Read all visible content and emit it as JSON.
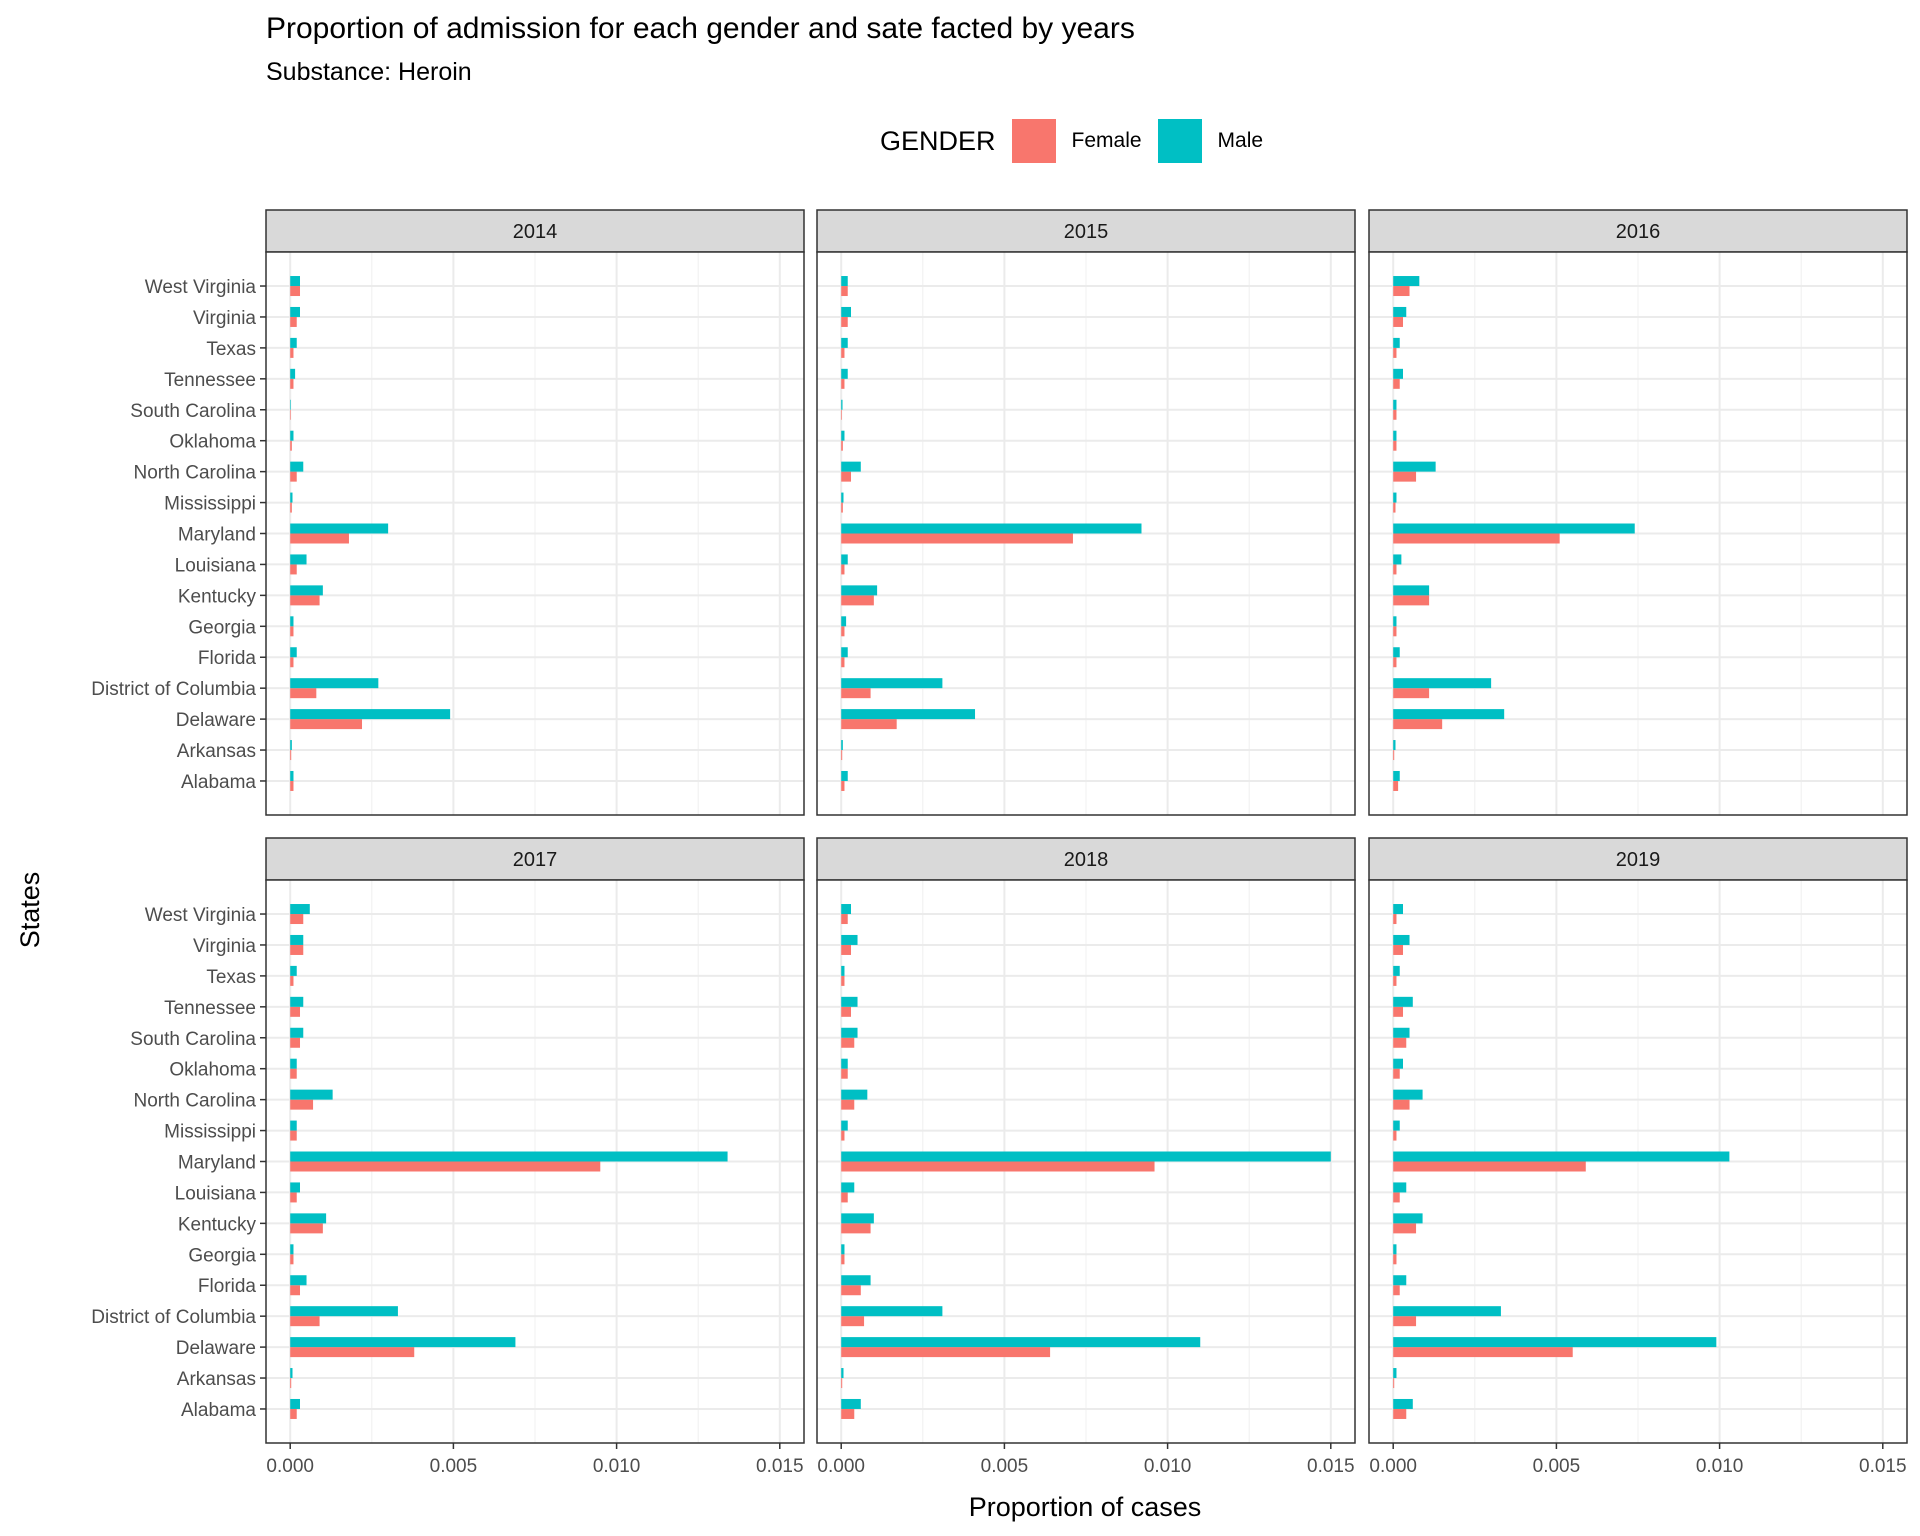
{
  "title": "Proportion of admission for each gender and sate facted by years",
  "subtitle": "Substance: Heroin",
  "legend": {
    "title": "GENDER",
    "items": [
      {
        "label": "Female",
        "color": "#F8766D"
      },
      {
        "label": "Male",
        "color": "#00BFC4"
      }
    ]
  },
  "chart_data": {
    "type": "bar",
    "orientation": "horizontal",
    "title": "Proportion of admission for each gender and sate facted by years",
    "subtitle": "Substance: Heroin",
    "xlabel": "Proportion of cases",
    "ylabel": "States",
    "xlim": [
      0,
      0.015
    ],
    "x_ticks": [
      "0.000",
      "0.005",
      "0.010",
      "0.015"
    ],
    "grid": true,
    "legend_position": "top",
    "categories": [
      "Alabama",
      "Arkansas",
      "Delaware",
      "District of Columbia",
      "Florida",
      "Georgia",
      "Kentucky",
      "Louisiana",
      "Maryland",
      "Mississippi",
      "North Carolina",
      "Oklahoma",
      "South Carolina",
      "Tennessee",
      "Texas",
      "Virginia",
      "West Virginia"
    ],
    "facets": [
      {
        "label": "2014",
        "series": [
          {
            "name": "Female",
            "values": [
              0.0001,
              3e-05,
              0.0022,
              0.0008,
              0.0001,
              0.0001,
              0.0009,
              0.0002,
              0.0018,
              5e-05,
              0.0002,
              5e-05,
              0.0,
              0.0001,
              0.0001,
              0.0002,
              0.0003
            ]
          },
          {
            "name": "Male",
            "values": [
              0.0001,
              5e-05,
              0.0049,
              0.0027,
              0.0002,
              0.0001,
              0.001,
              0.0005,
              0.003,
              7e-05,
              0.0004,
              0.0001,
              1e-05,
              0.00015,
              0.0002,
              0.0003,
              0.0003
            ]
          }
        ]
      },
      {
        "label": "2015",
        "series": [
          {
            "name": "Female",
            "values": [
              0.0001,
              3e-05,
              0.0017,
              0.0009,
              0.0001,
              0.0001,
              0.001,
              0.0001,
              0.0071,
              5e-05,
              0.0003,
              5e-05,
              2e-05,
              0.0001,
              0.0001,
              0.0002,
              0.0002
            ]
          },
          {
            "name": "Male",
            "values": [
              0.0002,
              5e-05,
              0.0041,
              0.0031,
              0.0002,
              0.00015,
              0.0011,
              0.0002,
              0.0092,
              7e-05,
              0.0006,
              0.0001,
              4e-05,
              0.0002,
              0.0002,
              0.0003,
              0.0002
            ]
          }
        ]
      },
      {
        "label": "2016",
        "series": [
          {
            "name": "Female",
            "values": [
              0.00015,
              3e-05,
              0.0015,
              0.0011,
              0.0001,
              0.0001,
              0.0011,
              0.0001,
              0.0051,
              7e-05,
              0.0007,
              0.0001,
              0.0001,
              0.0002,
              0.0001,
              0.0003,
              0.0005
            ]
          },
          {
            "name": "Male",
            "values": [
              0.0002,
              7e-05,
              0.0034,
              0.003,
              0.0002,
              0.0001,
              0.0011,
              0.00025,
              0.0074,
              0.0001,
              0.0013,
              0.0001,
              0.0001,
              0.0003,
              0.0002,
              0.0004,
              0.0008
            ]
          }
        ]
      },
      {
        "label": "2017",
        "series": [
          {
            "name": "Female",
            "values": [
              0.0002,
              3e-05,
              0.0038,
              0.0009,
              0.0003,
              0.0001,
              0.001,
              0.0002,
              0.0095,
              0.0002,
              0.0007,
              0.0002,
              0.0003,
              0.0003,
              0.0001,
              0.0004,
              0.0004
            ]
          },
          {
            "name": "Male",
            "values": [
              0.0003,
              7e-05,
              0.0069,
              0.0033,
              0.0005,
              0.0001,
              0.0011,
              0.0003,
              0.0134,
              0.0002,
              0.0013,
              0.0002,
              0.0004,
              0.0004,
              0.0002,
              0.0004,
              0.0006
            ]
          }
        ]
      },
      {
        "label": "2018",
        "series": [
          {
            "name": "Female",
            "values": [
              0.0004,
              3e-05,
              0.0064,
              0.0007,
              0.0006,
              0.0001,
              0.0009,
              0.0002,
              0.0096,
              0.0001,
              0.0004,
              0.0002,
              0.0004,
              0.0003,
              0.0001,
              0.0003,
              0.0002
            ]
          },
          {
            "name": "Male",
            "values": [
              0.0006,
              7e-05,
              0.011,
              0.0031,
              0.0009,
              0.0001,
              0.001,
              0.0004,
              0.015,
              0.0002,
              0.0008,
              0.0002,
              0.0005,
              0.0005,
              0.0001,
              0.0005,
              0.0003
            ]
          }
        ]
      },
      {
        "label": "2019",
        "series": [
          {
            "name": "Female",
            "values": [
              0.0004,
              3e-05,
              0.0055,
              0.0007,
              0.0002,
              0.0001,
              0.0007,
              0.0002,
              0.0059,
              0.0001,
              0.0005,
              0.0002,
              0.0004,
              0.0003,
              0.0001,
              0.0003,
              0.0001
            ]
          },
          {
            "name": "Male",
            "values": [
              0.0006,
              0.0001,
              0.0099,
              0.0033,
              0.0004,
              0.0001,
              0.0009,
              0.0004,
              0.0103,
              0.0002,
              0.0009,
              0.0003,
              0.0005,
              0.0006,
              0.0002,
              0.0005,
              0.0003
            ]
          }
        ]
      }
    ]
  }
}
